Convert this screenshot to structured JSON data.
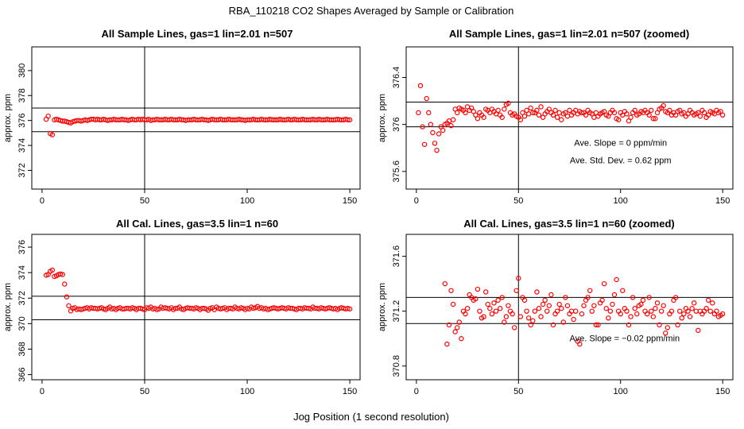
{
  "figure": {
    "title": "RBA_110218  CO2 Shapes Averaged by Sample or Calibration",
    "xlabel": "Jog Position (1 second resolution)"
  },
  "chart_data": [
    {
      "type": "scatter",
      "title": "All Sample Lines, gas=1 lin=2.01 n=507",
      "xlabel": "",
      "ylabel": "approx. ppm",
      "xlim": [
        -5,
        155
      ],
      "ylim": [
        370.5,
        381.9
      ],
      "xticks": [
        0,
        50,
        100,
        150
      ],
      "yticks": [
        372,
        374,
        376,
        378,
        380
      ],
      "hlines": [
        375.1,
        377.0
      ],
      "vlines": [
        50
      ],
      "marker_color": "#ff0000",
      "annotations": [],
      "x_start": 2,
      "values": [
        376.1,
        376.35,
        374.95,
        374.85,
        376.05,
        376.1,
        376.05,
        376.0,
        375.95,
        375.95,
        375.9,
        375.85,
        375.8,
        375.9,
        375.95,
        376.0,
        376.0,
        375.95,
        376.0,
        376.05,
        376.0,
        376.05,
        376.1,
        376.1,
        376.05,
        376.1,
        376.05,
        376.05,
        376.1,
        376.05,
        376.0,
        376.05,
        376.05,
        376.1,
        376.05,
        376.05,
        376.05,
        376.1,
        376.05,
        376.05,
        376.0,
        376.05,
        376.1,
        376.05,
        376.05,
        376.1,
        376.05,
        376.1,
        376.05,
        376.05,
        376.1,
        376.0,
        376.05,
        376.05,
        376.1,
        376.05,
        376.05,
        376.05,
        376.1,
        376.05,
        376.05,
        376.1,
        376.05,
        376.05,
        376.05,
        376.1,
        376.05,
        376.05,
        376.0,
        376.05,
        376.05,
        376.05,
        376.1,
        376.05,
        376.05,
        376.05,
        376.1,
        376.05,
        376.05,
        376.0,
        376.05,
        376.1,
        376.05,
        376.05,
        376.05,
        376.1,
        376.05,
        376.05,
        376.05,
        376.1,
        376.05,
        376.05,
        376.05,
        376.05,
        376.1,
        376.05,
        376.05,
        376.0,
        376.05,
        376.05,
        376.05,
        376.1,
        376.05,
        376.05,
        376.05,
        376.1,
        376.05,
        376.05,
        376.05,
        376.1,
        376.05,
        376.05,
        376.05,
        376.05,
        376.1,
        376.05,
        376.05,
        376.05,
        376.1,
        376.05,
        376.05,
        376.1,
        376.05,
        376.05,
        376.05,
        376.1,
        376.05,
        376.05,
        376.05,
        376.05,
        376.1,
        376.05,
        376.05,
        376.1,
        376.05,
        376.05,
        376.05,
        376.1,
        376.05,
        376.05,
        376.05,
        376.05,
        376.1,
        376.05,
        376.05,
        376.05,
        376.1,
        376.05,
        376.05
      ]
    },
    {
      "type": "scatter",
      "title": "All Sample Lines, gas=1 lin=2.01 n=507 (zoomed)",
      "xlabel": "",
      "ylabel": "approx. ppm",
      "xlim": [
        -5,
        155
      ],
      "ylim": [
        375.45,
        376.66
      ],
      "xticks": [
        0,
        50,
        100,
        150
      ],
      "yticks": [
        375.6,
        376.0,
        376.4
      ],
      "hlines": [
        375.98,
        376.19
      ],
      "vlines": [
        50
      ],
      "marker_color": "#ff0000",
      "annotations": [
        {
          "label": "Ave. Slope =  0  ppm/min",
          "x": 100,
          "y": 375.82
        },
        {
          "label": "Ave. Std. Dev. =  0.62  ppm",
          "x": 100,
          "y": 375.67
        }
      ],
      "x_start": 1,
      "values": [
        376.1,
        376.33,
        375.98,
        375.83,
        376.22,
        376.1,
        376.0,
        375.93,
        375.84,
        375.78,
        375.92,
        375.98,
        375.95,
        376.0,
        376.01,
        376.03,
        375.99,
        376.04,
        376.13,
        376.1,
        376.14,
        376.13,
        376.12,
        376.1,
        376.15,
        376.12,
        376.14,
        376.11,
        376.08,
        376.05,
        376.1,
        376.08,
        376.06,
        376.13,
        376.12,
        376.1,
        376.13,
        376.11,
        376.09,
        376.12,
        376.08,
        376.06,
        376.13,
        376.17,
        376.18,
        376.1,
        376.08,
        376.09,
        376.07,
        376.06,
        376.04,
        376.1,
        376.07,
        376.12,
        376.09,
        376.14,
        376.1,
        376.1,
        376.12,
        376.08,
        376.15,
        376.06,
        376.09,
        376.11,
        376.13,
        376.1,
        376.08,
        376.12,
        376.06,
        376.1,
        376.04,
        376.09,
        376.1,
        376.07,
        376.12,
        376.08,
        376.1,
        376.12,
        376.09,
        376.11,
        376.1,
        376.1,
        376.08,
        376.12,
        376.1,
        376.09,
        376.06,
        376.1,
        376.07,
        376.09,
        376.1,
        376.11,
        376.08,
        376.07,
        376.1,
        376.12,
        376.1,
        376.05,
        376.04,
        376.1,
        376.08,
        376.11,
        376.09,
        376.03,
        376.06,
        376.1,
        376.12,
        376.08,
        376.09,
        376.11,
        376.1,
        376.12,
        376.1,
        376.08,
        376.12,
        376.05,
        376.05,
        376.1,
        376.13,
        376.14,
        376.16,
        376.11,
        376.1,
        376.12,
        376.08,
        376.1,
        376.08,
        376.11,
        376.12,
        376.09,
        376.1,
        376.07,
        376.09,
        376.12,
        376.1,
        376.08,
        376.09,
        376.1,
        376.07,
        376.12,
        376.1,
        376.06,
        376.08,
        376.11,
        376.1,
        376.09,
        376.12,
        376.1,
        376.11,
        376.08
      ]
    },
    {
      "type": "scatter",
      "title": "All Cal. Lines, gas=3.5 lin=1 n=60",
      "xlabel": "",
      "ylabel": "approx. ppm",
      "xlim": [
        -5,
        155
      ],
      "ylim": [
        365.6,
        377.0
      ],
      "xticks": [
        0,
        50,
        100,
        150
      ],
      "yticks": [
        366,
        368,
        370,
        372,
        374,
        376
      ],
      "hlines": [
        370.3,
        372.15
      ],
      "vlines": [
        50
      ],
      "marker_color": "#ff0000",
      "annotations": [],
      "x_start": 2,
      "values": [
        373.8,
        373.85,
        374.1,
        374.2,
        373.7,
        373.75,
        373.85,
        373.9,
        373.85,
        373.1,
        372.1,
        371.4,
        371.0,
        371.2,
        371.25,
        371.1,
        371.15,
        371.1,
        371.15,
        371.2,
        371.25,
        371.15,
        371.25,
        371.2,
        371.2,
        371.15,
        371.2,
        371.25,
        371.15,
        371.1,
        371.2,
        371.3,
        371.15,
        371.2,
        371.1,
        371.2,
        371.25,
        371.15,
        371.15,
        371.2,
        371.2,
        371.15,
        371.25,
        371.2,
        371.1,
        371.2,
        371.2,
        371.15,
        371.1,
        371.25,
        371.2,
        371.3,
        371.15,
        371.2,
        371.1,
        371.15,
        371.3,
        371.2,
        371.25,
        371.2,
        371.15,
        371.25,
        371.1,
        371.2,
        371.2,
        371.3,
        371.15,
        371.1,
        371.2,
        371.25,
        371.2,
        371.2,
        371.15,
        371.25,
        371.2,
        371.1,
        371.2,
        371.2,
        371.15,
        371.05,
        371.2,
        371.25,
        371.1,
        371.3,
        371.2,
        371.15,
        371.2,
        371.25,
        371.1,
        371.2,
        371.2,
        371.15,
        371.3,
        371.2,
        371.15,
        371.25,
        371.2,
        371.1,
        371.2,
        371.15,
        371.3,
        371.2,
        371.25,
        371.35,
        371.2,
        371.25,
        371.15,
        371.2,
        371.1,
        371.15,
        371.2,
        371.25,
        371.2,
        371.15,
        371.2,
        371.25,
        371.2,
        371.15,
        371.25,
        371.2,
        371.2,
        371.15,
        371.1,
        371.2,
        371.2,
        371.15,
        371.25,
        371.2,
        371.2,
        371.15,
        371.3,
        371.2,
        371.2,
        371.15,
        371.25,
        371.2,
        371.15,
        371.2,
        371.25,
        371.2,
        371.15,
        371.2,
        371.1,
        371.2,
        371.25,
        371.2,
        371.15,
        371.2,
        371.15
      ]
    },
    {
      "type": "scatter",
      "title": "All Cal. Lines, gas=3.5 lin=1 n=60 (zoomed)",
      "xlabel": "",
      "ylabel": "approx. ppm",
      "xlim": [
        -5,
        155
      ],
      "ylim": [
        370.7,
        371.76
      ],
      "xticks": [
        0,
        50,
        100,
        150
      ],
      "yticks": [
        370.8,
        371.2,
        371.6
      ],
      "hlines": [
        371.11,
        371.3
      ],
      "vlines": [
        50
      ],
      "marker_color": "#ff0000",
      "annotations": [
        {
          "label": "Ave. Slope =  −0.02  ppm/min",
          "x": 102,
          "y": 370.98
        }
      ],
      "x_start": 14,
      "values": [
        371.4,
        370.96,
        371.1,
        371.35,
        371.25,
        371.05,
        371.08,
        371.12,
        371.0,
        371.2,
        371.18,
        371.22,
        371.32,
        371.3,
        371.28,
        371.29,
        371.36,
        371.2,
        371.15,
        371.16,
        371.34,
        371.25,
        371.22,
        371.18,
        371.26,
        371.2,
        371.28,
        371.22,
        371.3,
        371.12,
        371.16,
        371.24,
        371.2,
        371.18,
        371.08,
        371.35,
        371.44,
        371.16,
        371.3,
        371.28,
        371.2,
        371.15,
        371.1,
        371.13,
        371.2,
        371.34,
        371.22,
        371.16,
        371.25,
        371.28,
        371.2,
        371.24,
        371.32,
        371.1,
        371.18,
        371.2,
        371.25,
        371.22,
        371.12,
        371.3,
        371.24,
        371.18,
        371.2,
        371.14,
        371.2,
        370.98,
        370.96,
        371.18,
        371.24,
        371.28,
        371.3,
        371.35,
        371.2,
        371.24,
        371.1,
        371.1,
        371.26,
        371.28,
        371.4,
        371.22,
        371.15,
        371.2,
        371.25,
        371.32,
        371.43,
        371.2,
        371.18,
        371.35,
        371.22,
        371.2,
        371.1,
        371.16,
        371.3,
        371.22,
        371.18,
        371.24,
        371.25,
        371.28,
        371.2,
        371.18,
        371.3,
        371.2,
        371.16,
        371.22,
        371.26,
        371.1,
        371.2,
        371.24,
        371.04,
        371.08,
        371.18,
        371.2,
        371.28,
        371.3,
        371.1,
        371.2,
        371.15,
        371.18,
        371.22,
        371.2,
        371.16,
        371.22,
        371.26,
        371.2,
        371.06,
        371.2,
        371.18,
        371.2,
        371.22,
        371.28,
        371.2,
        371.26,
        371.18,
        371.2,
        371.16,
        371.17,
        371.18
      ]
    }
  ]
}
